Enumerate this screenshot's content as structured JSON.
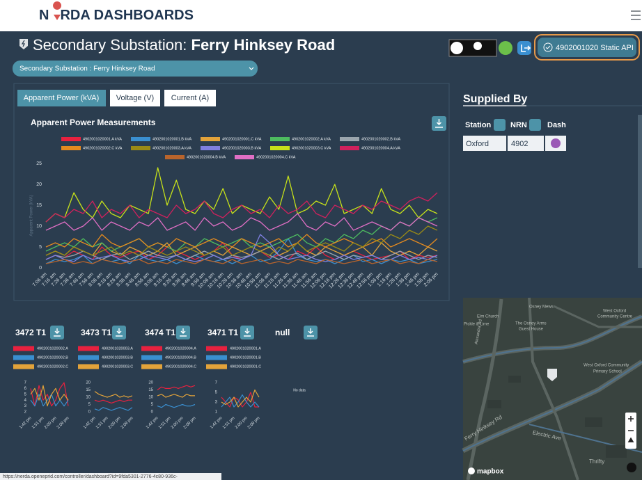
{
  "header": {
    "logo_left": "N",
    "logo_right": "RDA DASHBOARDS"
  },
  "page_title": {
    "label": "Secondary Substation:",
    "name": "Ferry Hinksey Road"
  },
  "dropdown": "Secondary Substation : Ferry Hinksey Road",
  "api_button": "4902001020 Static API",
  "tabs": [
    "Apparent Power (kVA)",
    "Voltage (V)",
    "Current (A)"
  ],
  "supplied_by": {
    "heading": "Supplied By",
    "columns": [
      "Station",
      "NRN",
      "Dash"
    ],
    "rows": [
      [
        "Oxford",
        "4902"
      ]
    ]
  },
  "map": {
    "labels": [
      "Osney Mews",
      "West Oxford",
      "Community Centre",
      "Elm Church",
      "Pickle & Lime",
      "The Osney Arms",
      "Guest House",
      "West Oxford Community",
      "Primary School",
      "Alexandra Rd",
      "Ferry Hinksey Rd",
      "Electric Ave",
      "Thrifty"
    ],
    "brand": "mapbox"
  },
  "status_url": "https://nerda.openeprid.com/controller/dashboard?id=9fda5301-2776-4c80-936c-",
  "chart_data": [
    {
      "type": "line",
      "title": "Apparent Power Measurements",
      "ylabel": "Apparent Power (kVA)",
      "categories": [
        "7:06 am",
        "7:16 am",
        "7:26 am",
        "7:36 am",
        "7:46 am",
        "7:56 am",
        "8:06 am",
        "8:16 am",
        "8:26 am",
        "8:36 am",
        "8:46 am",
        "8:56 am",
        "9:06 am",
        "9:16 am",
        "9:26 am",
        "9:36 am",
        "9:46 am",
        "9:56 am",
        "10:06 am",
        "10:16 am",
        "10:26 am",
        "10:36 am",
        "10:46 am",
        "10:56 am",
        "11:06 am",
        "11:16 am",
        "11:26 am",
        "11:36 am",
        "11:46 am",
        "11:56 am",
        "12:06 pm",
        "12:16 pm",
        "12:26 pm",
        "12:36 pm",
        "12:46 pm",
        "12:56 pm",
        "1:06 pm",
        "1:16 pm",
        "1:26 pm",
        "1:36 pm",
        "1:46 pm",
        "1:56 pm",
        "2:06 pm"
      ],
      "ylim": [
        0,
        25
      ],
      "yticks": [
        0,
        5,
        10,
        15,
        20,
        25
      ],
      "series": [
        {
          "name": "4902001020001.A kVA",
          "color": "#e8213f",
          "values": [
            2,
            3,
            2.5,
            4,
            3,
            2,
            5,
            3,
            2.5,
            3.5,
            4,
            2,
            3,
            5,
            4,
            3,
            2,
            3,
            4,
            6,
            3,
            2,
            3,
            4,
            2.5,
            3,
            2,
            4,
            3,
            5,
            3,
            2,
            3,
            4,
            3,
            2,
            2.5,
            3,
            4,
            2,
            3,
            2.5,
            3
          ]
        },
        {
          "name": "4902001020001.B kVA",
          "color": "#3a8fd0",
          "values": [
            1,
            2,
            1.5,
            2,
            3,
            1,
            2,
            1.5,
            2,
            1,
            3,
            2,
            1.5,
            2,
            1,
            2,
            3,
            2,
            1.5,
            2,
            1,
            2,
            3,
            1.5,
            2,
            4,
            7,
            3,
            2,
            1.5,
            2,
            1,
            2,
            3,
            1.5,
            2,
            1,
            2,
            1.5,
            2,
            1,
            1.5,
            2
          ]
        },
        {
          "name": "4902001020001.C kVA",
          "color": "#e3a33a",
          "values": [
            3,
            4,
            3,
            5,
            4,
            3,
            6,
            4,
            3,
            5,
            4,
            3,
            4,
            6,
            3,
            4,
            5,
            3,
            4,
            3,
            5,
            4,
            3,
            4,
            5,
            3,
            4,
            6,
            4,
            3,
            5,
            4,
            3,
            4,
            5,
            3,
            6,
            4,
            3,
            4,
            3,
            5,
            4
          ]
        },
        {
          "name": "4902001020002.A kVA",
          "color": "#4dbb5f",
          "values": [
            4,
            5,
            6,
            5,
            7,
            5,
            6,
            4,
            5,
            6,
            7,
            5,
            6,
            5,
            4,
            6,
            5,
            7,
            6,
            5,
            6,
            7,
            5,
            6,
            5,
            6,
            7,
            8,
            6,
            5,
            7,
            6,
            8,
            7,
            9,
            8,
            10,
            9,
            11,
            10,
            12,
            11,
            12
          ]
        },
        {
          "name": "4902001020002.B kVA",
          "color": "#9aa5ad",
          "values": [
            2,
            3,
            2.5,
            3,
            4,
            3,
            2,
            3,
            3.5,
            2,
            3,
            4,
            3,
            2.5,
            3,
            2,
            3,
            4,
            3,
            2,
            3,
            2.5,
            3,
            4,
            3,
            2,
            3,
            3.5,
            2,
            3,
            4,
            3,
            2,
            3,
            2.5,
            3,
            2,
            3,
            4,
            3,
            2,
            3,
            2.5
          ]
        },
        {
          "name": "4902001020002.C kVA",
          "color": "#e58a1f",
          "values": [
            5,
            6,
            5,
            7,
            6,
            5,
            8,
            6,
            5,
            6,
            7,
            5,
            6,
            5,
            7,
            6,
            5,
            6,
            7,
            6,
            5,
            7,
            6,
            5,
            6,
            7,
            5,
            6,
            8,
            6,
            5,
            6,
            7,
            6,
            5,
            6,
            7,
            5,
            6,
            7,
            6,
            5,
            7
          ]
        },
        {
          "name": "4902001020003.A kVA",
          "color": "#9a8a16",
          "values": [
            3,
            4,
            3,
            5,
            4,
            3,
            4,
            5,
            3,
            4,
            3,
            5,
            4,
            3,
            4,
            5,
            4,
            3,
            4,
            5,
            3,
            4,
            5,
            4,
            3,
            5,
            4,
            6,
            4,
            5,
            6,
            5,
            4,
            6,
            5,
            7,
            6,
            8,
            7,
            9,
            8,
            10,
            9
          ]
        },
        {
          "name": "4902001020003.B kVA",
          "color": "#7f7fe0",
          "values": [
            2,
            3,
            2,
            1.5,
            3,
            2,
            2.5,
            3,
            2,
            1.5,
            2,
            3,
            2.5,
            2,
            3,
            2,
            1.5,
            2,
            3,
            2,
            2.5,
            2,
            3,
            8,
            6,
            3,
            2,
            2.5,
            3,
            2,
            1.5,
            2,
            3,
            2,
            2.5,
            3,
            2,
            2,
            3,
            2,
            2.5,
            2,
            3
          ]
        },
        {
          "name": "4902001020003.C kVA",
          "color": "#c6e11a",
          "values": [
            11,
            13,
            12,
            18,
            14,
            12,
            16,
            13,
            12,
            15,
            14,
            13,
            24,
            15,
            21,
            14,
            13,
            16,
            14,
            19,
            13,
            15,
            14,
            13,
            17,
            14,
            22,
            13,
            14,
            16,
            15,
            20,
            13,
            14,
            15,
            13,
            19,
            14,
            13,
            15,
            12,
            14,
            13
          ]
        },
        {
          "name": "4902001020004.A kVA",
          "color": "#d0215d",
          "values": [
            11,
            13,
            12,
            14,
            13,
            16,
            12,
            14,
            13,
            15,
            12,
            14,
            13,
            12,
            15,
            13,
            14,
            16,
            13,
            12,
            14,
            15,
            13,
            14,
            12,
            15,
            13,
            14,
            16,
            13,
            12,
            15,
            14,
            13,
            15,
            14,
            16,
            15,
            14,
            16,
            17,
            16,
            18
          ]
        },
        {
          "name": "4902001020004.B kVA",
          "color": "#b8642c",
          "values": [
            1,
            1.5,
            2,
            1,
            1.5,
            1,
            2,
            1.5,
            1,
            1.5,
            2,
            1,
            1.5,
            1,
            2,
            1.5,
            1,
            2,
            1.5,
            1,
            2,
            1,
            1.5,
            2,
            1,
            1.5,
            1,
            2,
            1.5,
            1,
            2,
            1.5,
            1,
            1.5,
            2,
            1,
            1.5,
            2,
            1,
            1.5,
            1,
            2,
            1.5
          ]
        },
        {
          "name": "4902001020004.C kVA",
          "color": "#e06fc5",
          "values": [
            9,
            10,
            11,
            9,
            10,
            12,
            9,
            11,
            10,
            9,
            11,
            10,
            12,
            9,
            10,
            11,
            9,
            12,
            10,
            11,
            9,
            10,
            12,
            11,
            9,
            10,
            11,
            13,
            10,
            9,
            11,
            10,
            12,
            9,
            10,
            11,
            10,
            9,
            11,
            10,
            12,
            11,
            10
          ]
        }
      ]
    },
    {
      "type": "line",
      "title": "3472 T1",
      "categories": [
        "1:42 pm",
        null,
        null,
        "1:51 pm",
        null,
        null,
        "2:00 pm",
        null,
        null,
        "2:09 pm"
      ],
      "ylim": [
        2,
        7
      ],
      "yticks": [
        2,
        3,
        4,
        5,
        6,
        7
      ],
      "series": [
        {
          "name": "4902001020002.A",
          "color": "#e8213f",
          "values": [
            6,
            3,
            6.5,
            4,
            5,
            3,
            4,
            6,
            7,
            3
          ]
        },
        {
          "name": "4902001020002.B",
          "color": "#3a8fd0",
          "values": [
            4,
            3,
            5,
            3,
            4,
            5,
            3,
            4,
            3,
            4
          ]
        },
        {
          "name": "4902001020002.C",
          "color": "#e3a33a",
          "values": [
            5,
            6,
            4,
            6.5,
            3,
            5,
            6,
            4,
            5,
            4
          ]
        }
      ]
    },
    {
      "type": "line",
      "title": "3473 T1",
      "categories": [
        "1:42 pm",
        null,
        null,
        "1:51 pm",
        null,
        null,
        "2:00 pm",
        null,
        null,
        "2:09 pm"
      ],
      "ylim": [
        0,
        20
      ],
      "yticks": [
        0,
        5,
        10,
        15,
        20
      ],
      "series": [
        {
          "name": "4902001020003.A",
          "color": "#e8213f",
          "values": [
            8,
            7,
            8,
            7,
            6,
            7,
            8,
            7,
            8,
            8
          ]
        },
        {
          "name": "4902001020003.B",
          "color": "#3a8fd0",
          "values": [
            2,
            1,
            3,
            2,
            1,
            2,
            3,
            2,
            1,
            3
          ]
        },
        {
          "name": "4902001020003.C",
          "color": "#e3a33a",
          "values": [
            14,
            12,
            11,
            10,
            11,
            12,
            10,
            11,
            10,
            11
          ]
        }
      ]
    },
    {
      "type": "line",
      "title": "3474 T1",
      "categories": [
        "1:42 pm",
        null,
        null,
        "1:51 pm",
        null,
        null,
        "2:00 pm",
        null,
        null,
        "2:09 pm"
      ],
      "ylim": [
        0,
        20
      ],
      "yticks": [
        0,
        5,
        10,
        15,
        20
      ],
      "series": [
        {
          "name": "4902001020004.A",
          "color": "#e8213f",
          "values": [
            15,
            17,
            16,
            16,
            17,
            16,
            17,
            18,
            17,
            18
          ]
        },
        {
          "name": "4902001020004.B",
          "color": "#3a8fd0",
          "values": [
            4,
            3,
            5,
            4,
            3,
            4,
            5,
            4,
            4,
            5
          ]
        },
        {
          "name": "4902001020004.C",
          "color": "#e3a33a",
          "values": [
            11,
            12,
            10,
            11,
            12,
            11,
            10,
            12,
            11,
            11
          ]
        }
      ]
    },
    {
      "type": "line",
      "title": "3471 T1",
      "categories": [
        "1:42 pm",
        null,
        null,
        "1:51 pm",
        null,
        null,
        "2:00 pm",
        null,
        null,
        "2:09 pm"
      ],
      "ylim": [
        1,
        7
      ],
      "yticks": [
        1,
        3,
        5,
        7
      ],
      "series": [
        {
          "name": "4902001020001.A",
          "color": "#e8213f",
          "values": [
            4,
            3,
            2,
            4,
            3.5,
            2,
            3,
            5,
            2,
            2
          ]
        },
        {
          "name": "4902001020001.B",
          "color": "#3a8fd0",
          "values": [
            2,
            3,
            4,
            2,
            3,
            4.5,
            3,
            2,
            3,
            2
          ]
        },
        {
          "name": "4902001020001.C",
          "color": "#e3a33a",
          "values": [
            3,
            2.5,
            3,
            4,
            2,
            3,
            4,
            3,
            5.5,
            4
          ]
        }
      ]
    },
    {
      "type": "line",
      "title": "null",
      "annotation": "No data",
      "series": []
    }
  ]
}
